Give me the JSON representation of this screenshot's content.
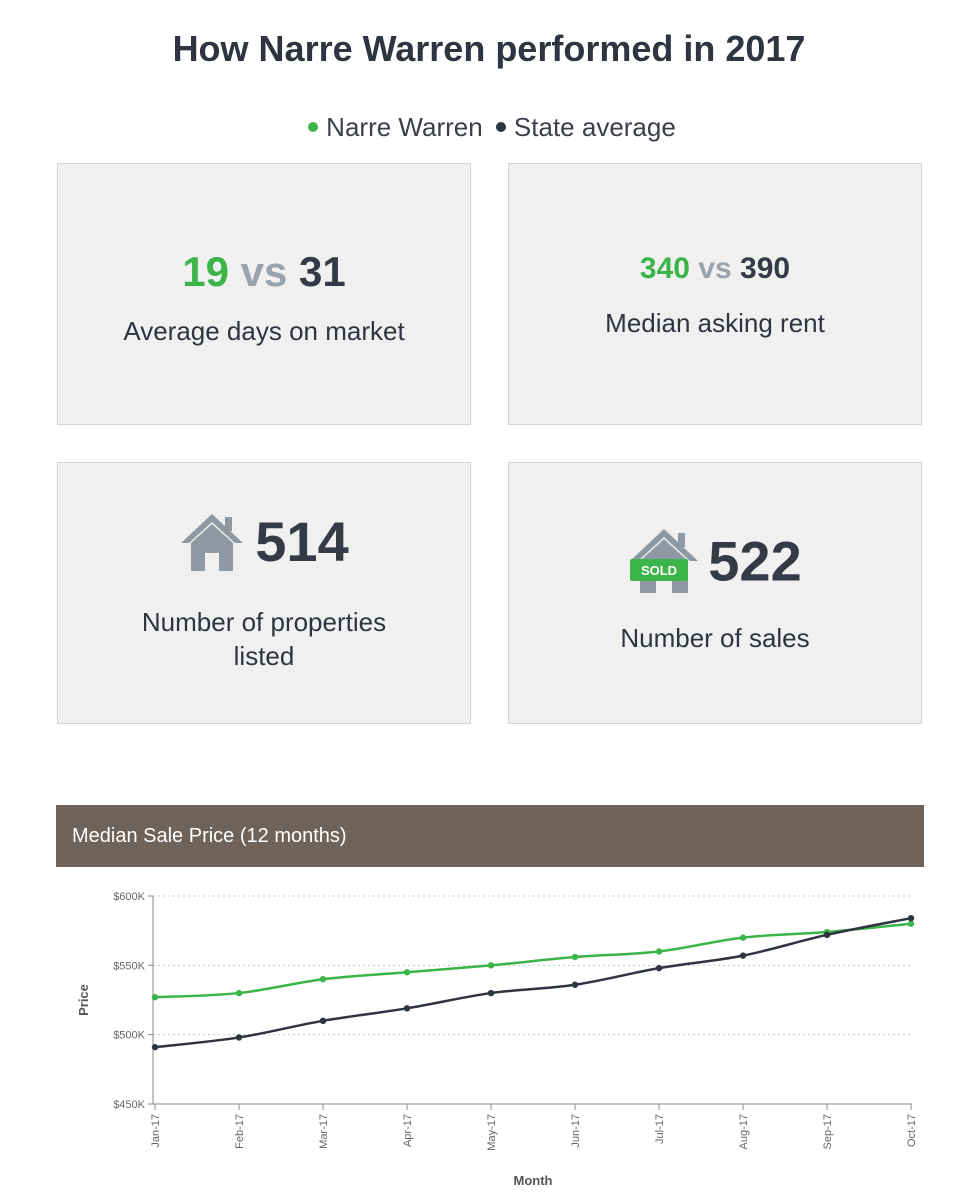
{
  "title": "How Narre Warren performed in 2017",
  "legend": [
    {
      "name": "Narre Warren",
      "color": "#3bb54a"
    },
    {
      "name": "State average",
      "color": "#2e3440"
    }
  ],
  "cards": {
    "days": {
      "suburb": "19",
      "vs": "vs",
      "state": "31",
      "label": "Average days on market"
    },
    "rent": {
      "suburb": "340",
      "vs": "vs",
      "state": "390",
      "label": "Median asking rent"
    },
    "listed": {
      "value": "514",
      "label_line1": "Number of properties",
      "label_line2": "listed",
      "icon": "house-icon"
    },
    "sales": {
      "value": "522",
      "label": "Number of sales",
      "icon": "sold-house-icon",
      "badge": "SOLD"
    }
  },
  "chart_header": "Median Sale Price (12 months)",
  "chart_data": {
    "type": "line",
    "title": "Median Sale Price (12 months)",
    "xlabel": "Month",
    "ylabel": "Price",
    "categories": [
      "Jan-17",
      "Feb-17",
      "Mar-17",
      "Apr-17",
      "May-17",
      "Jun-17",
      "Jul-17",
      "Aug-17",
      "Sep-17",
      "Oct-17"
    ],
    "yticks": [
      "$450K",
      "$500K",
      "$550K",
      "$600K"
    ],
    "ylim": [
      450000,
      600000
    ],
    "grid": true,
    "series": [
      {
        "color": "#3bb54a",
        "values": [
          527000,
          530000,
          540000,
          545000,
          550000,
          556000,
          560000,
          570000,
          574000,
          580000
        ]
      },
      {
        "color": "#2e3440",
        "values": [
          491000,
          498000,
          510000,
          519000,
          530000,
          536000,
          548000,
          557000,
          572000,
          584000
        ]
      }
    ]
  }
}
